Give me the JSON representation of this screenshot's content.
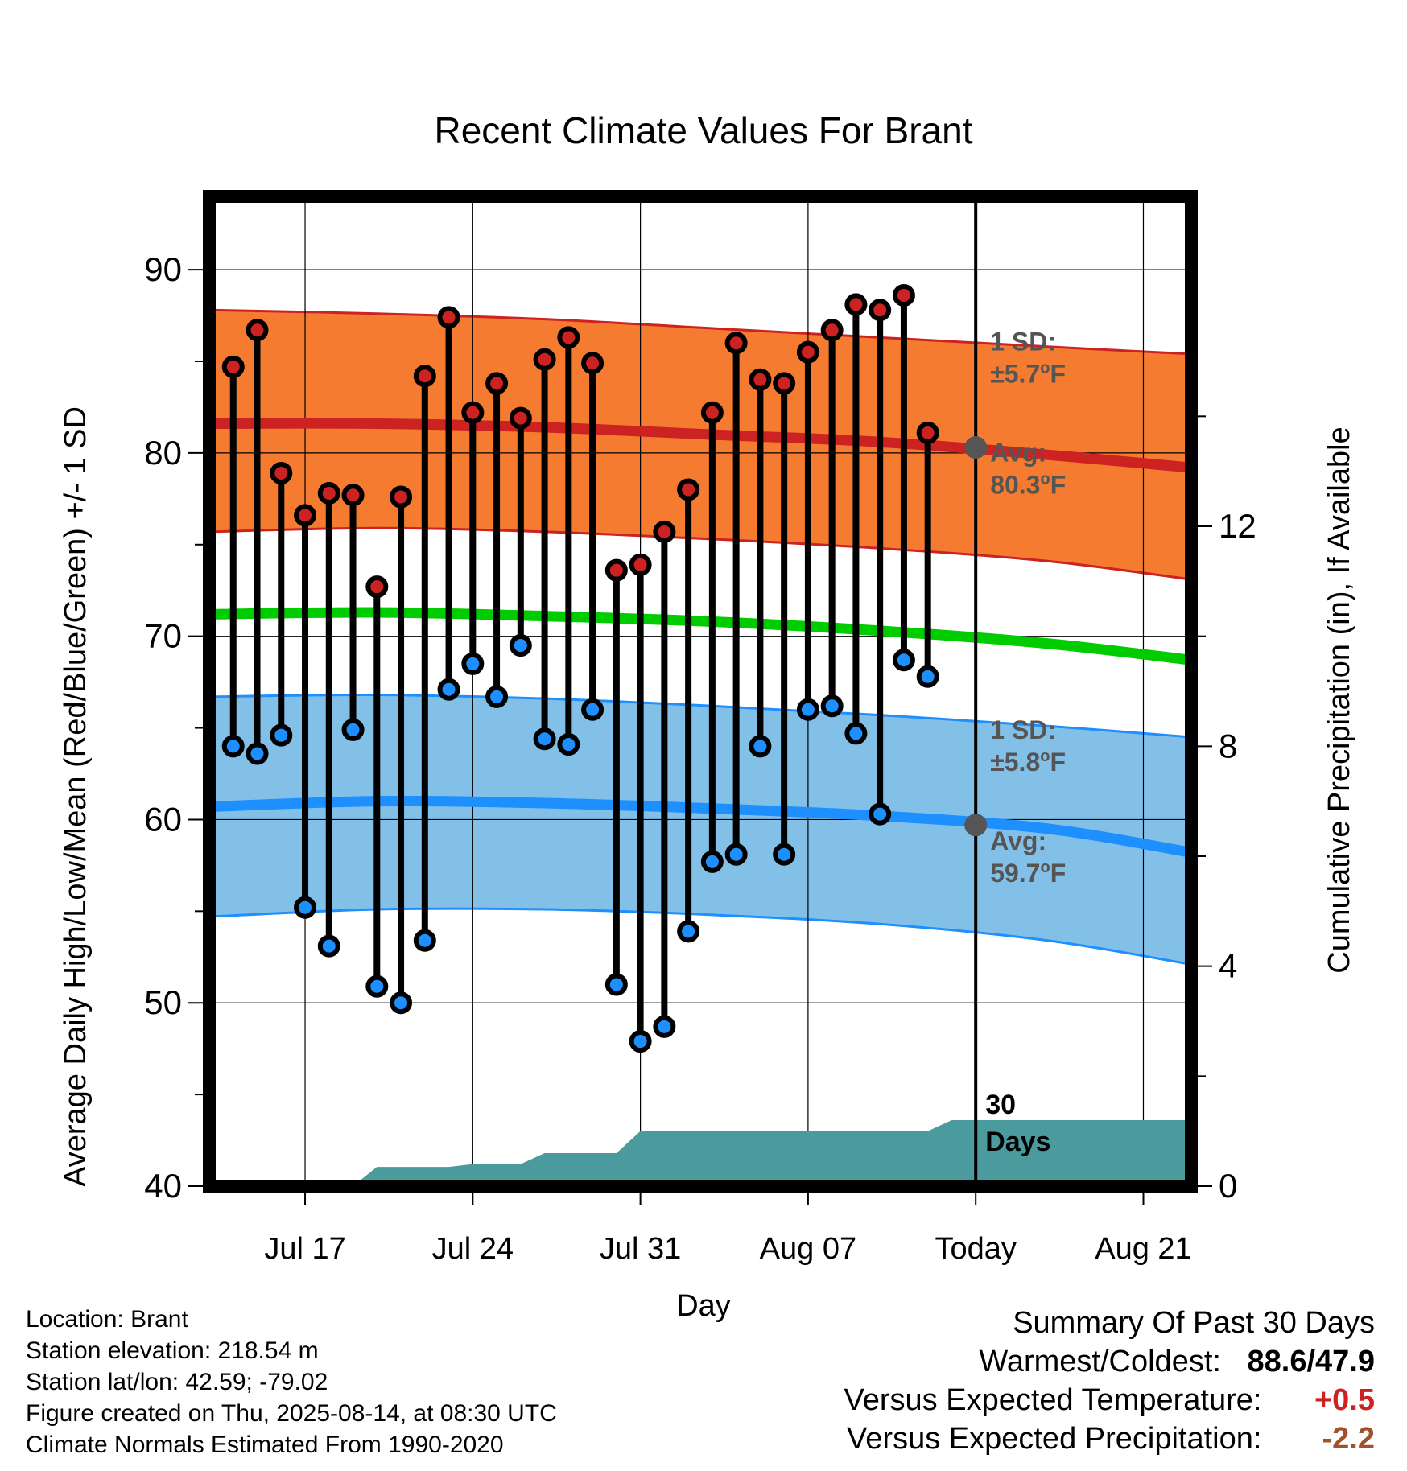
{
  "chart_data": {
    "type": "line",
    "title": "Recent Climate Values For Brant",
    "xlabel": "Day",
    "ylabel": "Average Daily High/Low/Mean (Red/Blue/Green) +/- 1 SD",
    "y2label": "Cumulative Precipitation (in), If Available",
    "ylim": [
      40,
      94
    ],
    "y2lim": [
      0,
      18
    ],
    "yticks": [
      40,
      50,
      60,
      70,
      80,
      90
    ],
    "y2ticks": [
      0,
      4,
      8,
      12
    ],
    "xlim": [
      "Jul 13",
      "Aug 23"
    ],
    "xticks": [
      {
        "date": "Jul 17",
        "label": "Jul 17"
      },
      {
        "date": "Jul 24",
        "label": "Jul 24"
      },
      {
        "date": "Jul 31",
        "label": "Jul 31"
      },
      {
        "date": "Aug 07",
        "label": "Aug 07"
      },
      {
        "date": "Aug 14",
        "label": "Today"
      },
      {
        "date": "Aug 21",
        "label": "Aug 21"
      }
    ],
    "today_label": "Today",
    "period_label": [
      "30",
      "Days"
    ],
    "dates": [
      "Jul 14",
      "Jul 15",
      "Jul 16",
      "Jul 17",
      "Jul 18",
      "Jul 19",
      "Jul 20",
      "Jul 21",
      "Jul 22",
      "Jul 23",
      "Jul 24",
      "Jul 25",
      "Jul 26",
      "Jul 27",
      "Jul 28",
      "Jul 29",
      "Jul 30",
      "Jul 31",
      "Aug 01",
      "Aug 02",
      "Aug 03",
      "Aug 04",
      "Aug 05",
      "Aug 06",
      "Aug 07",
      "Aug 08",
      "Aug 09",
      "Aug 10",
      "Aug 11",
      "Aug 12",
      "Aug 13"
    ],
    "daily_high": [
      84.7,
      86.7,
      78.9,
      76.6,
      77.8,
      77.7,
      72.7,
      77.6,
      84.2,
      87.4,
      82.2,
      83.8,
      81.9,
      85.1,
      86.3,
      84.9,
      73.6,
      73.9,
      75.7,
      78.0,
      82.2,
      86.0,
      84.0,
      83.8,
      85.5,
      86.7,
      88.1,
      87.8,
      88.6,
      81.1,
      null
    ],
    "daily_low": [
      64.0,
      63.6,
      64.6,
      55.2,
      53.1,
      64.9,
      50.9,
      50.0,
      53.4,
      67.1,
      68.5,
      66.7,
      69.5,
      64.4,
      64.1,
      66.0,
      51.0,
      47.9,
      48.7,
      53.9,
      57.7,
      58.1,
      64.0,
      58.1,
      66.0,
      66.2,
      64.7,
      60.3,
      68.7,
      67.8,
      null
    ],
    "normals": {
      "dates": [
        "Jul 13",
        "Jul 20",
        "Jul 27",
        "Aug 03",
        "Aug 10",
        "Aug 17",
        "Aug 23"
      ],
      "high_avg": [
        81.6,
        81.6,
        81.4,
        81.0,
        80.6,
        79.9,
        79.2
      ],
      "high_upper": [
        87.8,
        87.6,
        87.3,
        86.8,
        86.3,
        85.8,
        85.4
      ],
      "high_lower": [
        75.7,
        75.9,
        75.7,
        75.3,
        74.8,
        74.1,
        73.1
      ],
      "mean_avg": [
        71.2,
        71.3,
        71.1,
        70.8,
        70.3,
        69.6,
        68.7
      ],
      "low_avg": [
        60.7,
        61.0,
        60.9,
        60.6,
        60.2,
        59.5,
        58.2
      ],
      "low_upper": [
        66.7,
        66.8,
        66.6,
        66.2,
        65.7,
        65.1,
        64.5
      ],
      "low_lower": [
        54.7,
        55.1,
        55.1,
        54.8,
        54.3,
        53.4,
        52.1
      ]
    },
    "today_high_avg": 80.3,
    "today_low_avg": 59.7,
    "high_annotation": {
      "sd_title": "1 SD:",
      "sd_value": "±5.7",
      "avg_title": "Avg:",
      "avg_value": "80.3",
      "unit": "F"
    },
    "low_annotation": {
      "sd_title": "1 SD:",
      "sd_value": "±5.8",
      "avg_title": "Avg:",
      "avg_value": "59.7",
      "unit": "F"
    },
    "precipitation": {
      "dates": [
        "Jul 13",
        "Jul 19",
        "Jul 20",
        "Jul 21",
        "Jul 22",
        "Jul 23",
        "Jul 24",
        "Jul 25",
        "Jul 26",
        "Jul 27",
        "Jul 28",
        "Jul 29",
        "Jul 30",
        "Jul 31",
        "Aug 01",
        "Aug 12",
        "Aug 13",
        "Aug 23"
      ],
      "values": [
        0,
        0,
        0.35,
        0.35,
        0.35,
        0.35,
        0.4,
        0.4,
        0.4,
        0.6,
        0.6,
        0.6,
        0.6,
        1.0,
        1.0,
        1.0,
        1.2,
        1.2
      ],
      "color": "#4a9a9e"
    },
    "colors": {
      "high": "#cc2222",
      "high_band": "#f47b30",
      "low": "#1e8fff",
      "low_band": "#82c0e8",
      "mean": "#00cc00",
      "annotation": "#555555"
    }
  },
  "info": {
    "location": "Location: Brant",
    "elevation": "Station elevation: 218.54 m",
    "latlon": "Station lat/lon: 42.59; -79.02",
    "created": "Figure created on Thu, 2025-08-14, at 08:30 UTC",
    "normals": "Climate Normals Estimated From 1990-2020"
  },
  "summary": {
    "title": "Summary Of Past 30 Days",
    "warmest_label": "Warmest/Coldest:",
    "warmest_value": "88.6/47.9",
    "temp_label": "Versus Expected Temperature:",
    "temp_value": "+0.5",
    "temp_color": "#cc2222",
    "precip_label": "Versus Expected Precipitation:",
    "precip_value": "-2.2",
    "precip_color": "#a0522d"
  }
}
